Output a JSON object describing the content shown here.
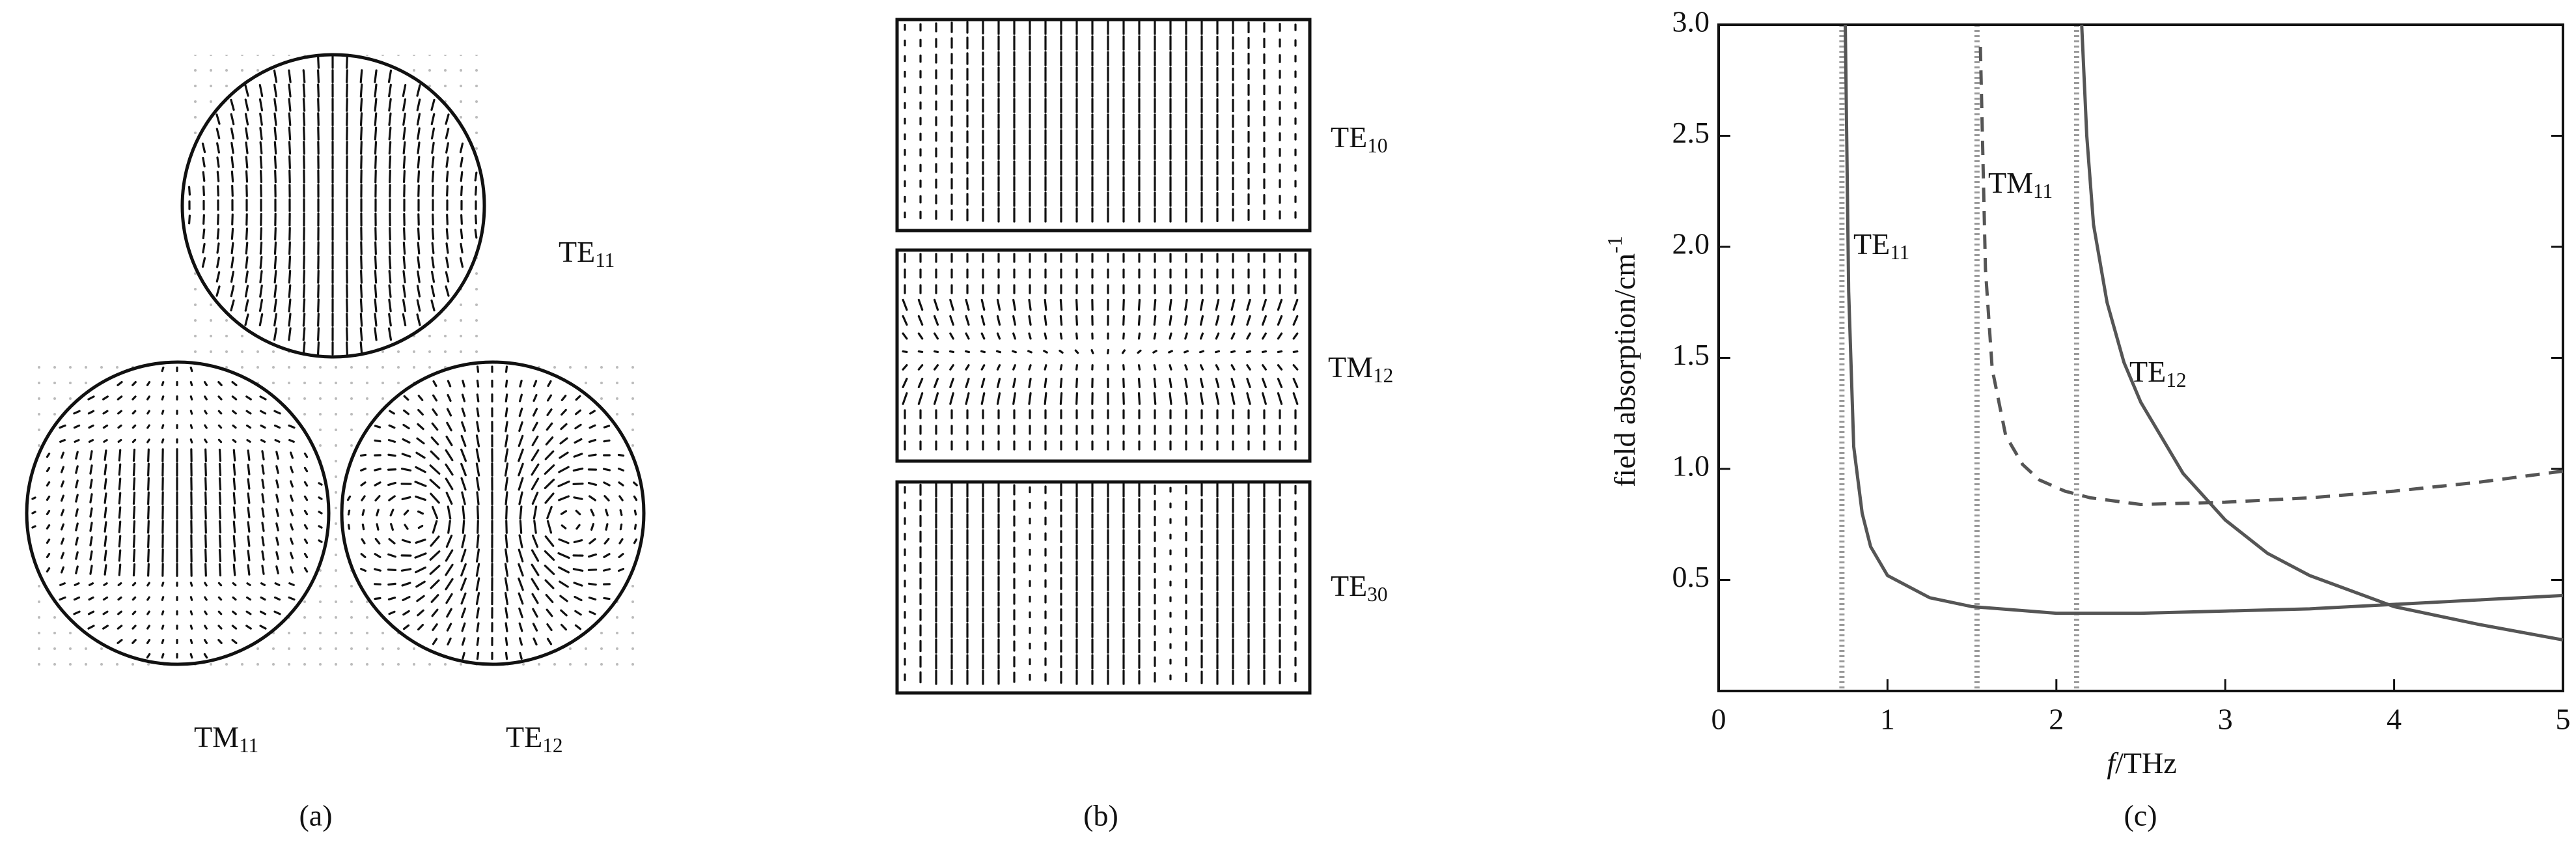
{
  "panel_a": {
    "caption": "(a)",
    "modes": [
      {
        "name": "TE",
        "sub": "11"
      },
      {
        "name": "TM",
        "sub": "11"
      },
      {
        "name": "TE",
        "sub": "12"
      }
    ]
  },
  "panel_b": {
    "caption": "(b)",
    "modes": [
      {
        "name": "TE",
        "sub": "10"
      },
      {
        "name": "TM",
        "sub": "12"
      },
      {
        "name": "TE",
        "sub": "30"
      }
    ]
  },
  "chart_data": {
    "type": "line",
    "caption": "(c)",
    "x_label_italic": "f",
    "x_label": "/THz",
    "y_label": "field absorption/cm",
    "y_label_sup": "-1",
    "xlim": [
      0,
      5
    ],
    "ylim": [
      0,
      3
    ],
    "xticks": [
      0,
      1,
      2,
      3,
      4,
      5
    ],
    "yticks": [
      0.5,
      {
        "value": 1,
        "label": "1.0"
      },
      1.5,
      {
        "value": 2,
        "label": "2.0"
      },
      2.5,
      {
        "value": 3,
        "label": "3.0"
      }
    ],
    "cutoffs": [
      0.73,
      1.53,
      2.12
    ],
    "cutoff_color": "#9a9a9a",
    "series": [
      {
        "name": "TE",
        "name_sub": "11",
        "color": "#555555",
        "dashed": false,
        "x": [
          0.75,
          0.77,
          0.8,
          0.85,
          0.9,
          1,
          1.25,
          1.5,
          2,
          2.5,
          3,
          3.5,
          4,
          4.5,
          5
        ],
        "values": [
          3.0,
          1.8,
          1.1,
          0.8,
          0.65,
          0.52,
          0.42,
          0.38,
          0.35,
          0.35,
          0.36,
          0.37,
          0.39,
          0.41,
          0.43
        ]
      },
      {
        "name": "TM",
        "name_sub": "11",
        "color": "#555555",
        "dashed": true,
        "x": [
          1.55,
          1.58,
          1.62,
          1.7,
          1.8,
          1.9,
          2.05,
          2.2,
          2.5,
          3,
          3.5,
          4,
          4.5,
          5
        ],
        "values": [
          2.9,
          1.9,
          1.45,
          1.15,
          1.02,
          0.95,
          0.9,
          0.87,
          0.84,
          0.85,
          0.87,
          0.9,
          0.94,
          0.99
        ]
      },
      {
        "name": "TE",
        "name_sub": "12",
        "color": "#555555",
        "dashed": false,
        "x": [
          2.15,
          2.18,
          2.22,
          2.3,
          2.4,
          2.5,
          2.75,
          3,
          3.25,
          3.5,
          4,
          4.5,
          5
        ],
        "values": [
          3.0,
          2.5,
          2.1,
          1.75,
          1.48,
          1.3,
          0.98,
          0.77,
          0.62,
          0.52,
          0.38,
          0.3,
          0.23
        ]
      }
    ]
  }
}
